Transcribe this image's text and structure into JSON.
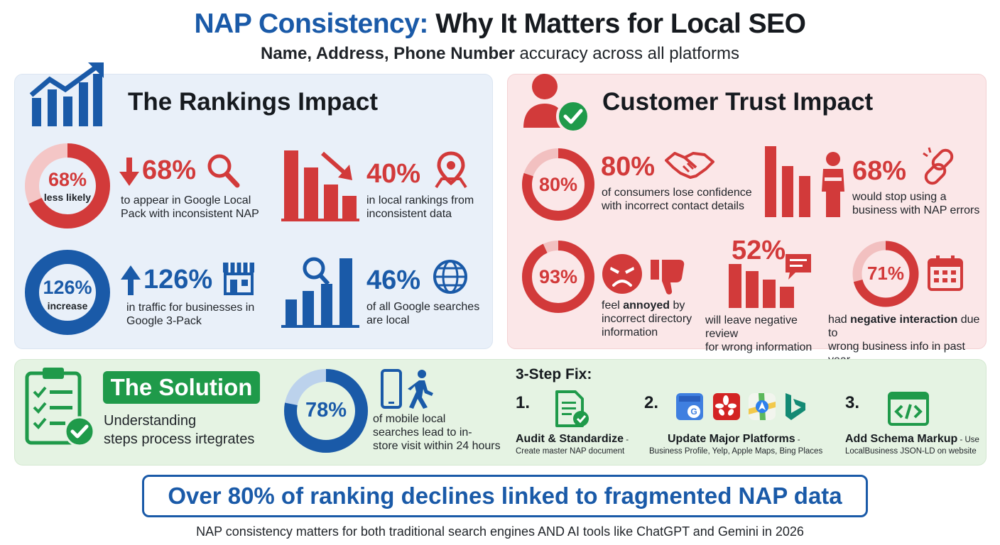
{
  "header": {
    "title_part1": "NAP Consistency:",
    "title_part2": "Why It Matters for Local SEO",
    "subtitle_bold": "Name, Address, Phone Number",
    "subtitle_rest": "accuracy across all platforms"
  },
  "rankings": {
    "title": "The Rankings Impact",
    "stat1": {
      "donut_value": "68%",
      "donut_label": "less likely",
      "donut_fraction": 0.68,
      "value": "68%",
      "desc_line1": "to appear in Google Local",
      "desc_line2": "Pack with inconsistent NAP"
    },
    "stat2": {
      "value": "40%",
      "desc_line1": "in local rankings from",
      "desc_line2": "inconsistent data"
    },
    "stat3": {
      "donut_value": "126%",
      "donut_label": "increase",
      "value": "126%",
      "desc_line1": "in traffic for businesses in",
      "desc_line2": "Google 3-Pack"
    },
    "stat4": {
      "value": "46%",
      "desc_line1": "of all Google searches",
      "desc_line2": "are local"
    }
  },
  "trust": {
    "title": "Customer Trust Impact",
    "stat1": {
      "donut_value": "80%",
      "donut_fraction": 0.8,
      "value": "80%",
      "desc_line1": "of consumers lose confidence",
      "desc_line2": "with incorrect contact details"
    },
    "stat2": {
      "value": "68%",
      "desc_line1": "would stop using a",
      "desc_line2": "business with NAP errors"
    },
    "stat3": {
      "donut_value": "93%",
      "donut_fraction": 0.93,
      "desc_pre": "feel ",
      "desc_bold": "annoyed",
      "desc_post": " by",
      "desc_line2": "incorrect directory",
      "desc_line3": "information"
    },
    "stat4": {
      "value": "52%",
      "desc_line1": "will leave negative review",
      "desc_line2": "for wrong information"
    },
    "stat5": {
      "donut_value": "71%",
      "donut_fraction": 0.71,
      "desc_pre": "had ",
      "desc_bold": "negative interaction",
      "desc_post": " due to",
      "desc_line2": "wrong business info in past year"
    }
  },
  "solution": {
    "title": "The Solution",
    "desc_line1": "Understanding",
    "desc_line2": "steps process irtegrates",
    "mobile": {
      "donut_value": "78%",
      "donut_fraction": 0.78,
      "desc_line1": "of mobile local",
      "desc_line2": "searches lead to in-",
      "desc_line3": "store visit within 24 hours"
    },
    "fix_title": "3-Step Fix:",
    "steps": [
      {
        "num": "1.",
        "title": "Audit & Standardize",
        "suffix": " -",
        "desc": "Create master NAP document"
      },
      {
        "num": "2.",
        "title": "Update Major Platforms",
        "suffix": " -",
        "desc": "Business Profile, Yelp, Apple Maps, Bing Places"
      },
      {
        "num": "3.",
        "title": "Add Schema Markup",
        "suffix": " - Use",
        "desc": "LocalBusiness JSON-LD on website"
      }
    ]
  },
  "callout": "Over 80% of ranking declines linked to fragmented NAP data",
  "footnote": "NAP consistency matters for both traditional search engines AND AI tools like ChatGPT and Gemini in 2026",
  "colors": {
    "blue": "#1a5aa8",
    "red": "#d23a3a",
    "green": "#1f9a4a",
    "light_red": "#f2b8b8",
    "light_blue": "#b9d0ec"
  }
}
